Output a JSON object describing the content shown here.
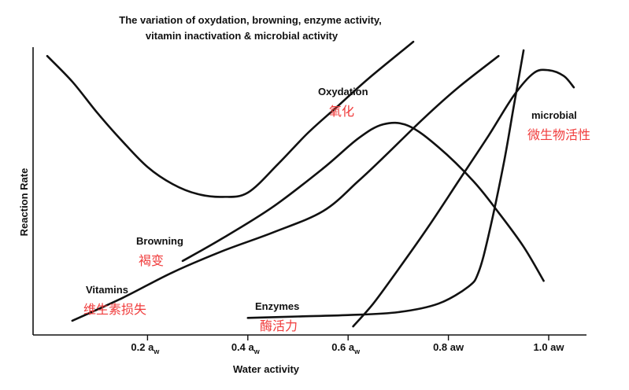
{
  "chart_data": {
    "type": "line",
    "title": [
      "The variation of oxydation, browning, enzyme activity,",
      "vitamin inactivation & microbial activity"
    ],
    "xlabel": "Water activity",
    "ylabel": "Reaction Rate",
    "xlim": [
      0,
      1.05
    ],
    "ylim": [
      0,
      100
    ],
    "grid": false,
    "ticks": [
      {
        "value": 0.2,
        "main": "0.2 a",
        "sub": "w"
      },
      {
        "value": 0.4,
        "main": "0.4 a",
        "sub": "w"
      },
      {
        "value": 0.6,
        "main": "0.6 a",
        "sub": "w"
      },
      {
        "value": 0.8,
        "main": "0.8 aw",
        "sub": ""
      },
      {
        "value": 1.0,
        "main": "1.0 aw",
        "sub": ""
      }
    ],
    "series": [
      {
        "name": "Oxydation",
        "name_cn": "氧化",
        "key": "oxydation",
        "points": [
          [
            0.0,
            98
          ],
          [
            0.05,
            89
          ],
          [
            0.1,
            78
          ],
          [
            0.15,
            68
          ],
          [
            0.2,
            59
          ],
          [
            0.25,
            53
          ],
          [
            0.3,
            49.5
          ],
          [
            0.35,
            48.5
          ],
          [
            0.4,
            50
          ],
          [
            0.46,
            60
          ],
          [
            0.52,
            71
          ],
          [
            0.58,
            80.5
          ],
          [
            0.64,
            90
          ],
          [
            0.73,
            103
          ]
        ]
      },
      {
        "name": "Browning",
        "name_cn": "褐变",
        "key": "browning",
        "points": [
          [
            0.27,
            26
          ],
          [
            0.35,
            34
          ],
          [
            0.45,
            45
          ],
          [
            0.55,
            58.5
          ],
          [
            0.62,
            69
          ],
          [
            0.67,
            74
          ],
          [
            0.72,
            73.5
          ],
          [
            0.78,
            66
          ],
          [
            0.85,
            54
          ],
          [
            0.9,
            43
          ],
          [
            0.95,
            31
          ],
          [
            0.99,
            19
          ]
        ]
      },
      {
        "name": "Vitamins",
        "name_cn": "维生素损失",
        "key": "vitamins",
        "points": [
          [
            0.05,
            5
          ],
          [
            0.15,
            13
          ],
          [
            0.25,
            22
          ],
          [
            0.35,
            29.5
          ],
          [
            0.45,
            36
          ],
          [
            0.55,
            43.5
          ],
          [
            0.62,
            54
          ],
          [
            0.68,
            64
          ],
          [
            0.75,
            76
          ],
          [
            0.82,
            87
          ],
          [
            0.9,
            98
          ]
        ]
      },
      {
        "name": "Enzymes",
        "name_cn": "酶活力",
        "key": "enzymes",
        "points": [
          [
            0.4,
            6
          ],
          [
            0.5,
            6.5
          ],
          [
            0.6,
            7
          ],
          [
            0.7,
            8
          ],
          [
            0.78,
            11
          ],
          [
            0.84,
            17
          ],
          [
            0.86,
            22
          ],
          [
            0.88,
            35
          ],
          [
            0.91,
            60
          ],
          [
            0.93,
            80
          ],
          [
            0.95,
            100
          ]
        ]
      },
      {
        "name": "microbial",
        "name_cn": "微生物活性",
        "key": "microbial",
        "points": [
          [
            0.61,
            3
          ],
          [
            0.65,
            11
          ],
          [
            0.7,
            23
          ],
          [
            0.76,
            38
          ],
          [
            0.82,
            54
          ],
          [
            0.88,
            70
          ],
          [
            0.93,
            84
          ],
          [
            0.97,
            92
          ],
          [
            1.0,
            93
          ],
          [
            1.03,
            91
          ],
          [
            1.05,
            87
          ]
        ]
      }
    ]
  }
}
